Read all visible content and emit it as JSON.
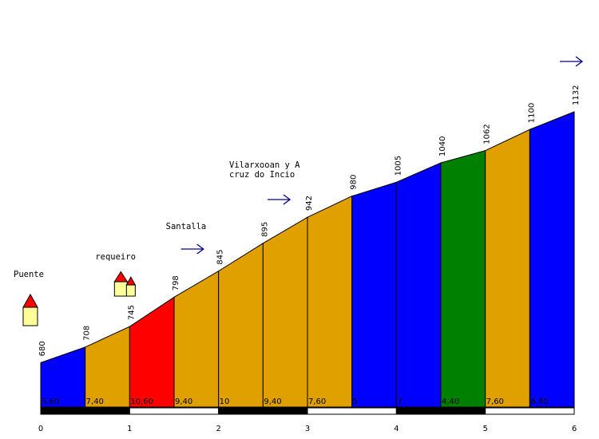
{
  "chart_data": {
    "type": "area",
    "x_ticks": [
      "0",
      "1",
      "2",
      "3",
      "4",
      "5",
      "6"
    ],
    "x_range": [
      0,
      6
    ],
    "y_range": [
      600,
      1132
    ],
    "elevation_points": [
      {
        "x": 0.0,
        "y": 680,
        "label": "680"
      },
      {
        "x": 0.5,
        "y": 708,
        "label": "708"
      },
      {
        "x": 1.0,
        "y": 745,
        "label": "745"
      },
      {
        "x": 1.5,
        "y": 798,
        "label": "798"
      },
      {
        "x": 2.0,
        "y": 845,
        "label": "845"
      },
      {
        "x": 2.5,
        "y": 895,
        "label": "895"
      },
      {
        "x": 3.0,
        "y": 942,
        "label": "942"
      },
      {
        "x": 3.5,
        "y": 980,
        "label": "980"
      },
      {
        "x": 4.0,
        "y": 1005,
        "label": "1005"
      },
      {
        "x": 4.5,
        "y": 1040,
        "label": "1040"
      },
      {
        "x": 5.0,
        "y": 1062,
        "label": "1062"
      },
      {
        "x": 5.5,
        "y": 1100,
        "label": "1100"
      },
      {
        "x": 6.0,
        "y": 1132,
        "label": "1132"
      }
    ],
    "segments": [
      {
        "grade": "5,60",
        "color": "#0000ff"
      },
      {
        "grade": "7,40",
        "color": "#e0a000"
      },
      {
        "grade": "10,60",
        "color": "#ff0000"
      },
      {
        "grade": "9,40",
        "color": "#e0a000"
      },
      {
        "grade": "10",
        "color": "#e0a000"
      },
      {
        "grade": "9,40",
        "color": "#e0a000"
      },
      {
        "grade": "7,60",
        "color": "#e0a000"
      },
      {
        "grade": "5",
        "color": "#0000ff"
      },
      {
        "grade": "7",
        "color": "#0000ff"
      },
      {
        "grade": "4,40",
        "color": "#008000"
      },
      {
        "grade": "7,60",
        "color": "#e0a000"
      },
      {
        "grade": "6,40",
        "color": "#0000ff"
      }
    ],
    "places": [
      {
        "name": "Puente",
        "at": 0.0,
        "marker": "house"
      },
      {
        "name": "requeiro",
        "at": 1.0,
        "marker": "village"
      },
      {
        "name": "Santalla",
        "at": 2.0,
        "marker": "arrow"
      },
      {
        "name_lines": [
          "Vilarxooan y A",
          "cruz do Incio"
        ],
        "at": 3.0,
        "marker": "arrow"
      },
      {
        "name": "",
        "at": 6.0,
        "marker": "arrow"
      }
    ],
    "km_bar_colors": [
      "#000000",
      "#ffffff"
    ]
  }
}
